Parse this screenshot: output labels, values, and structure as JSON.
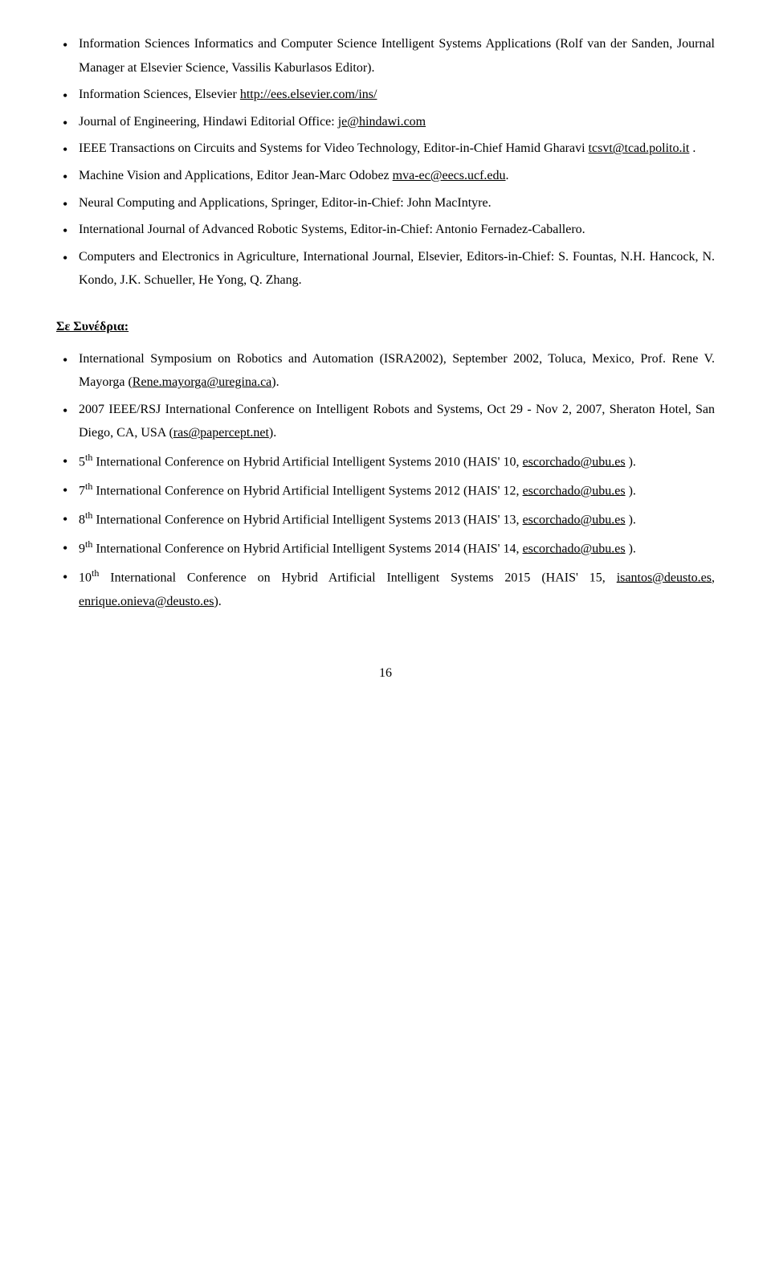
{
  "journals": [
    {
      "text": "Information Sciences Informatics and Computer Science Intelligent Systems Applications (Rolf van der Sanden, Journal Manager at Elsevier Science, Vassilis Kaburlasos Editor)."
    },
    {
      "prefix": "Information Sciences, Elsevier  ",
      "link": "http://ees.elsevier.com/ins/"
    },
    {
      "prefix": "Journal of Engineering, Hindawi Editorial Office: ",
      "link": "je@hindawi.com"
    },
    {
      "prefix": "IEEE Transactions on Circuits and Systems for Video Technology,  Editor-in-Chief Hamid Gharavi ",
      "link": "tcsvt@tcad.polito.it",
      "suffix": " ."
    },
    {
      "prefix": "Machine Vision and Applications,  Editor Jean-Marc Odobez ",
      "link": "mva-ec@eecs.ucf.edu",
      "suffix": "."
    },
    {
      "text": "Neural Computing and Applications, Springer, Editor-in-Chief: John MacIntyre."
    },
    {
      "text": "International Journal of Advanced Robotic Systems, Editor-in-Chief: Antonio Fernadez-Caballero."
    },
    {
      "text": "Computers and Electronics in Agriculture, International Journal, Elsevier, Editors-in-Chief: S. Fountas, N.H. Hancock, N. Kondo, J.K. Schueller, He Yong, Q. Zhang."
    }
  ],
  "section_heading": "Σε Συνέδρια:",
  "conferences": [
    {
      "prefix": "International Symposium on Robotics and Automation (ISRA2002), September 2002, Toluca, Mexico, Prof. Rene V. Mayorga (",
      "link": "Rene.mayorga@uregina.ca",
      "suffix": ")."
    },
    {
      "prefix": "2007 IEEE/RSJ International Conference on Intelligent Robots and Systems, Oct 29 - Nov 2, 2007, Sheraton Hotel, San Diego, CA, USA (",
      "link": "ras@papercept.net",
      "suffix": ")."
    },
    {
      "ord": "5",
      "sup": "th",
      "mid": " International  Conference on Hybrid Artificial Intelligent Systems 2010 (HAIS' 10,  ",
      "link": "escorchado@ubu.es",
      "suffix": " )."
    },
    {
      "ord": "7",
      "sup": "th",
      "mid": " International  Conference on Hybrid Artificial Intelligent Systems 2012 (HAIS' 12,  ",
      "link": "escorchado@ubu.es",
      "suffix": " )."
    },
    {
      "ord": "8",
      "sup": "th",
      "mid": " International  Conference on Hybrid Artificial Intelligent Systems 2013 (HAIS' 13,  ",
      "link": "escorchado@ubu.es",
      "suffix": " )."
    },
    {
      "ord": "9",
      "sup": "th",
      "mid": " International  Conference on Hybrid Artificial Intelligent Systems 2014 (HAIS' 14,  ",
      "link": "escorchado@ubu.es",
      "suffix": " )."
    },
    {
      "ord": "10",
      "sup": "th",
      "mid": " International  Conference on Hybrid Artificial Intelligent Systems 2015 (HAIS' 15,   ",
      "link": "isantos@deusto.es",
      "suffix": ", ",
      "link2": "enrique.onieva@deusto.es",
      "suffix2": ")."
    }
  ],
  "page_number": "16"
}
